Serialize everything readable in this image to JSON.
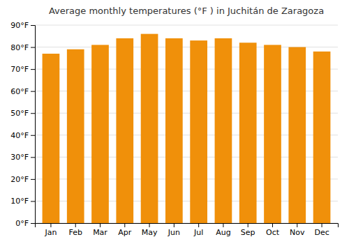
{
  "chart_data": {
    "type": "bar",
    "title": "Average monthly temperatures (°F ) in Juchitán de Zaragoza",
    "categories": [
      "Jan",
      "Feb",
      "Mar",
      "Apr",
      "May",
      "Jun",
      "Jul",
      "Aug",
      "Sep",
      "Oct",
      "Nov",
      "Dec"
    ],
    "values": [
      77,
      79,
      81,
      84,
      86,
      84,
      83,
      84,
      82,
      81,
      80,
      78
    ],
    "color": "#F0900A",
    "ylim": [
      0,
      90
    ],
    "yticks": [
      {
        "value": 0,
        "label": "0°F"
      },
      {
        "value": 10,
        "label": "10°F"
      },
      {
        "value": 20,
        "label": "20°F"
      },
      {
        "value": 30,
        "label": "30°F"
      },
      {
        "value": 40,
        "label": "40°F"
      },
      {
        "value": 50,
        "label": "50°F"
      },
      {
        "value": 60,
        "label": "60°F"
      },
      {
        "value": 70,
        "label": "70°F"
      },
      {
        "value": 80,
        "label": "80°F"
      },
      {
        "value": 90,
        "label": "90°F"
      }
    ],
    "grid": true
  }
}
